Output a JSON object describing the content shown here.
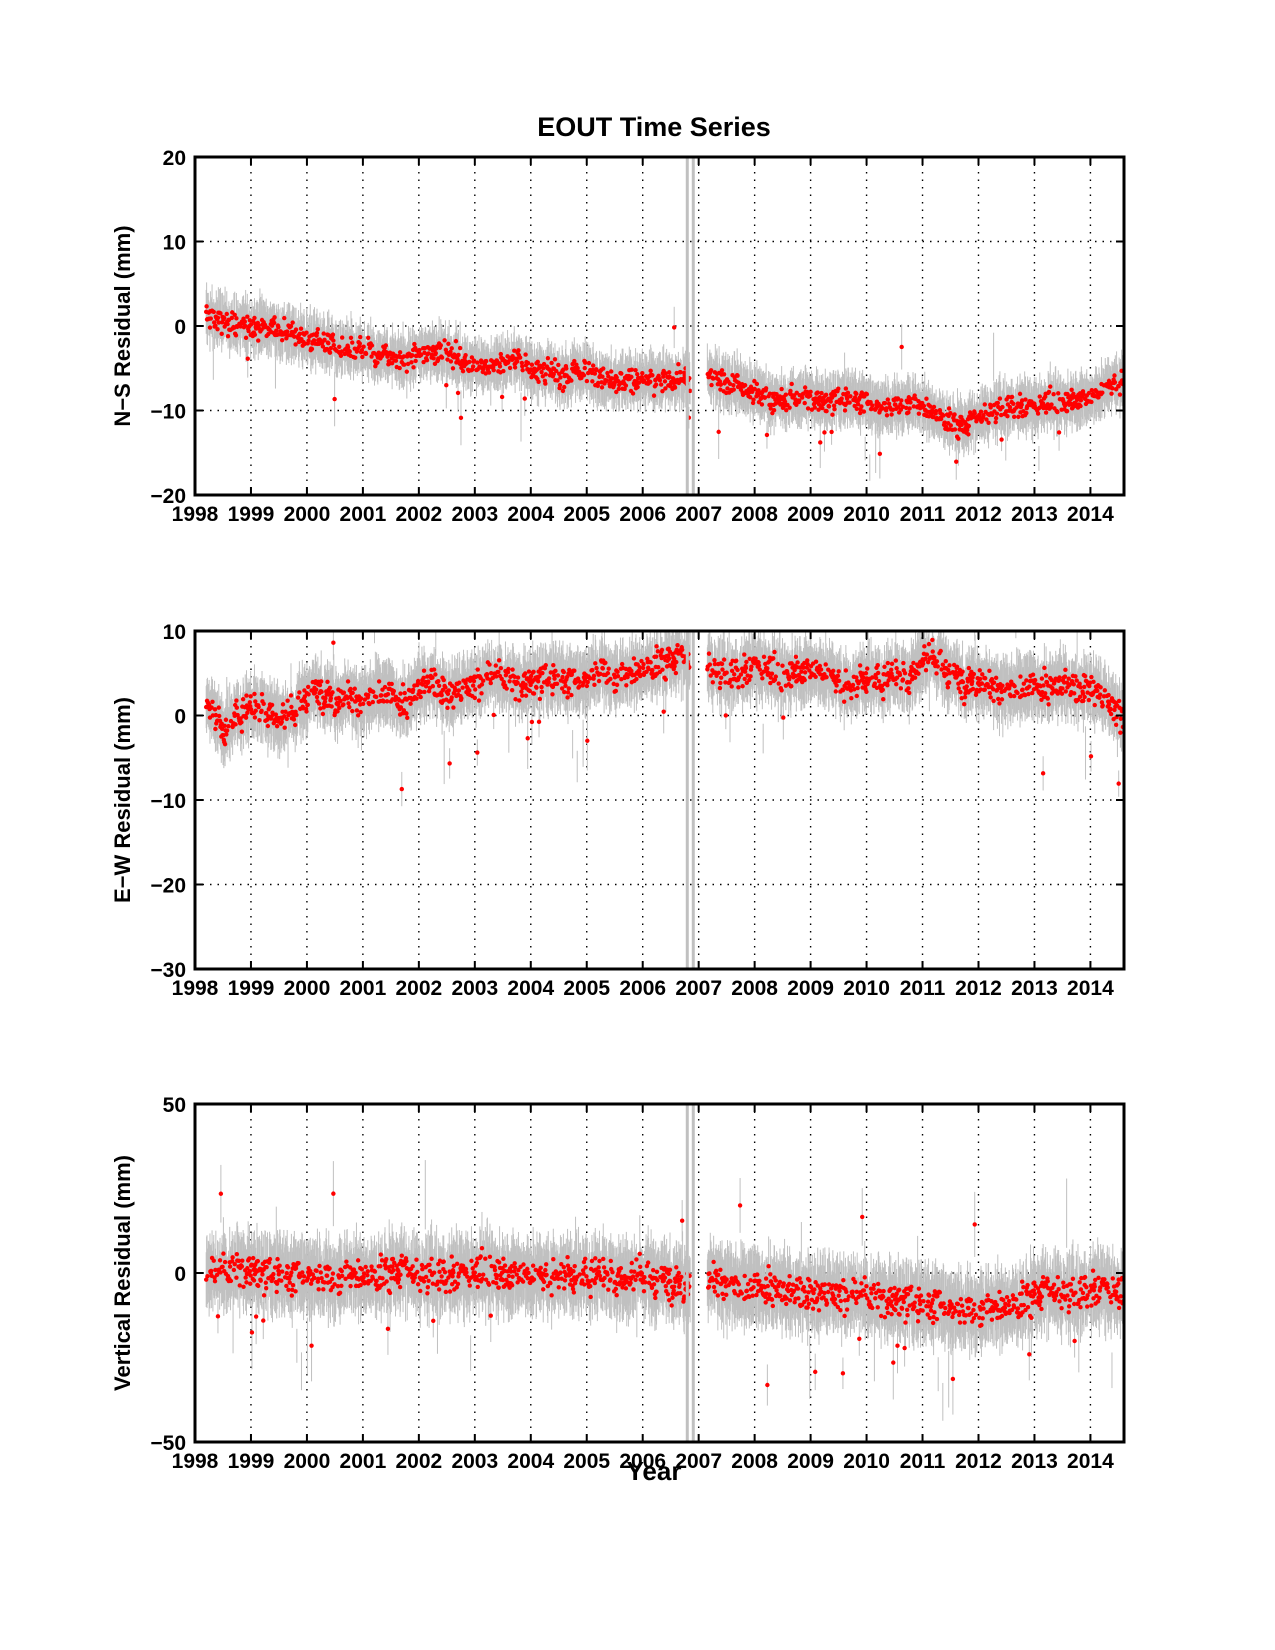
{
  "title": "EOUT Time Series",
  "xlabel": "Year",
  "colors": {
    "points": "#ff0000",
    "errorbars": "#c0c0c0",
    "gap_marker": "#c0c0c0",
    "grid": "#000000"
  },
  "chart_data": [
    {
      "type": "scatter",
      "title": "EOUT Time Series",
      "xlabel": "",
      "ylabel": "N−S Residual (mm)",
      "xlim": [
        1998,
        2014.6
      ],
      "ylim": [
        -20,
        20
      ],
      "xticks": [
        1998,
        1999,
        2000,
        2001,
        2002,
        2003,
        2004,
        2005,
        2006,
        2007,
        2008,
        2009,
        2010,
        2011,
        2012,
        2013,
        2014
      ],
      "xticklabels": [
        "1998",
        "1999",
        "2000",
        "2001",
        "2002",
        "2003",
        "2004",
        "2005",
        "2006",
        "2007",
        "2008",
        "2009",
        "2010",
        "2011",
        "2012",
        "2013",
        "2014"
      ],
      "yticks": [
        -20,
        -10,
        0,
        10,
        20
      ],
      "yticklabels": [
        "−20",
        "−10",
        "0",
        "10",
        "20"
      ],
      "grid": true,
      "gap_marker_x": 2006.85,
      "data_gap": [
        2006.85,
        2007.15
      ],
      "series": [
        {
          "x": [
            1998.25,
            1998.5,
            1998.75,
            1999.0,
            1999.25,
            1999.5,
            1999.75,
            2000.0,
            2000.25,
            2000.5,
            2000.75,
            2001.0,
            2001.25,
            2001.5,
            2001.75,
            2002.0,
            2002.25,
            2002.5,
            2002.75,
            2003.0,
            2003.25,
            2003.5,
            2003.75,
            2004.0,
            2004.25,
            2004.5,
            2004.75,
            2005.0,
            2005.25,
            2005.5,
            2005.75,
            2006.0,
            2006.25,
            2006.5,
            2006.75,
            2007.25,
            2007.5,
            2007.75,
            2008.0,
            2008.25,
            2008.5,
            2008.75,
            2009.0,
            2009.25,
            2009.5,
            2009.75,
            2010.0,
            2010.25,
            2010.5,
            2010.75,
            2011.0,
            2011.25,
            2011.5,
            2011.75,
            2012.0,
            2012.25,
            2012.5,
            2012.75,
            2013.0,
            2013.25,
            2013.5,
            2013.75,
            2014.0,
            2014.25,
            2014.5
          ],
          "y": [
            1,
            0.5,
            0,
            0,
            0,
            -0.5,
            -1,
            -1.5,
            -2,
            -2.5,
            -3,
            -3,
            -3.5,
            -3.5,
            -4,
            -3.5,
            -3,
            -3,
            -4,
            -4.5,
            -5,
            -4.5,
            -4,
            -5,
            -5.5,
            -6,
            -5.5,
            -5.5,
            -6,
            -6.5,
            -6.5,
            -6.5,
            -6.5,
            -6.5,
            -6.5,
            -6,
            -6.5,
            -7,
            -8,
            -8.5,
            -9,
            -8.5,
            -8.5,
            -9,
            -8.5,
            -8.5,
            -9,
            -9.5,
            -9.5,
            -9,
            -9.5,
            -10.5,
            -11.5,
            -12,
            -11,
            -10,
            -9.5,
            -9.5,
            -9.5,
            -9,
            -9,
            -8.5,
            -8.5,
            -7.5,
            -6.5
          ]
        }
      ]
    },
    {
      "type": "scatter",
      "title": "",
      "xlabel": "",
      "ylabel": "E−W Residual (mm)",
      "xlim": [
        1998,
        2014.6
      ],
      "ylim": [
        -30,
        10
      ],
      "xticks": [
        1998,
        1999,
        2000,
        2001,
        2002,
        2003,
        2004,
        2005,
        2006,
        2007,
        2008,
        2009,
        2010,
        2011,
        2012,
        2013,
        2014
      ],
      "xticklabels": [
        "1998",
        "1999",
        "2000",
        "2001",
        "2002",
        "2003",
        "2004",
        "2005",
        "2006",
        "2007",
        "2008",
        "2009",
        "2010",
        "2011",
        "2012",
        "2013",
        "2014"
      ],
      "yticks": [
        -30,
        -20,
        -10,
        0,
        10
      ],
      "yticklabels": [
        "−30",
        "−20",
        "−10",
        "0",
        "10"
      ],
      "grid": true,
      "gap_marker_x": 2006.85,
      "data_gap": [
        2006.85,
        2007.15
      ],
      "series": [
        {
          "x": [
            1998.25,
            1998.5,
            1998.75,
            1999.0,
            1999.25,
            1999.5,
            1999.75,
            2000.0,
            2000.25,
            2000.5,
            2000.75,
            2001.0,
            2001.25,
            2001.5,
            2001.75,
            2002.0,
            2002.25,
            2002.5,
            2002.75,
            2003.0,
            2003.25,
            2003.5,
            2003.75,
            2004.0,
            2004.25,
            2004.5,
            2004.75,
            2005.0,
            2005.25,
            2005.5,
            2005.75,
            2006.0,
            2006.25,
            2006.5,
            2006.75,
            2007.25,
            2007.5,
            2007.75,
            2008.0,
            2008.25,
            2008.5,
            2008.75,
            2009.0,
            2009.25,
            2009.5,
            2009.75,
            2010.0,
            2010.25,
            2010.5,
            2010.75,
            2011.0,
            2011.25,
            2011.5,
            2011.75,
            2012.0,
            2012.25,
            2012.5,
            2012.75,
            2013.0,
            2013.25,
            2013.5,
            2013.75,
            2014.0,
            2014.25,
            2014.5
          ],
          "y": [
            1.5,
            -2,
            0,
            1,
            1,
            -0.5,
            0,
            2.5,
            3,
            2,
            2.5,
            1.5,
            3,
            2.5,
            1,
            3.5,
            4,
            2.5,
            3,
            3.5,
            4.5,
            4.5,
            3.5,
            4,
            4.5,
            4.5,
            4,
            4.5,
            5.5,
            4.5,
            5,
            5.5,
            6,
            6.5,
            6.5,
            5.5,
            5,
            5,
            6,
            5.5,
            4.5,
            5.5,
            5.5,
            5,
            4,
            3.5,
            4.5,
            4,
            5,
            4.5,
            6.5,
            6.5,
            5,
            4,
            4.5,
            3.5,
            3,
            3.5,
            3.5,
            3,
            4,
            3,
            3.5,
            2,
            0
          ]
        }
      ]
    },
    {
      "type": "scatter",
      "title": "",
      "xlabel": "Year",
      "ylabel": "Vertical Residual (mm)",
      "xlim": [
        1998,
        2014.6
      ],
      "ylim": [
        -50,
        50
      ],
      "xticks": [
        1998,
        1999,
        2000,
        2001,
        2002,
        2003,
        2004,
        2005,
        2006,
        2007,
        2008,
        2009,
        2010,
        2011,
        2012,
        2013,
        2014
      ],
      "xticklabels": [
        "1998",
        "1999",
        "2000",
        "2001",
        "2002",
        "2003",
        "2004",
        "2005",
        "2006",
        "2007",
        "2008",
        "2009",
        "2010",
        "2011",
        "2012",
        "2013",
        "2014"
      ],
      "yticks": [
        -50,
        0,
        50
      ],
      "yticklabels": [
        "−50",
        "0",
        "50"
      ],
      "grid": true,
      "gap_marker_x": 2006.85,
      "data_gap": [
        2006.85,
        2007.15
      ],
      "series": [
        {
          "x": [
            1998.25,
            1998.5,
            1998.75,
            1999.0,
            1999.25,
            1999.5,
            1999.75,
            2000.0,
            2000.25,
            2000.5,
            2000.75,
            2001.0,
            2001.25,
            2001.5,
            2001.75,
            2002.0,
            2002.25,
            2002.5,
            2002.75,
            2003.0,
            2003.25,
            2003.5,
            2003.75,
            2004.0,
            2004.25,
            2004.5,
            2004.75,
            2005.0,
            2005.25,
            2005.5,
            2005.75,
            2006.0,
            2006.25,
            2006.5,
            2006.75,
            2007.25,
            2007.5,
            2007.75,
            2008.0,
            2008.25,
            2008.5,
            2008.75,
            2009.0,
            2009.25,
            2009.5,
            2009.75,
            2010.0,
            2010.25,
            2010.5,
            2010.75,
            2011.0,
            2011.25,
            2011.5,
            2011.75,
            2012.0,
            2012.25,
            2012.5,
            2012.75,
            2013.0,
            2013.25,
            2013.5,
            2013.75,
            2014.0,
            2014.25,
            2014.5
          ],
          "y": [
            -1,
            0,
            1,
            1,
            0,
            0,
            -1,
            0,
            -1,
            -2,
            0,
            -1,
            -1,
            0,
            0,
            -1,
            0,
            -1,
            0,
            0,
            1,
            0,
            0,
            -1,
            -1,
            0,
            -1,
            -1,
            0,
            -1,
            -2,
            -1,
            -2,
            -2,
            -3,
            -1,
            -3,
            -4,
            -4,
            -5,
            -5,
            -6,
            -6,
            -6,
            -7,
            -7,
            -7,
            -8,
            -8,
            -8,
            -9,
            -9,
            -10,
            -11,
            -11,
            -10,
            -10,
            -9,
            -7,
            -6,
            -6,
            -6,
            -5,
            -4,
            -6
          ]
        }
      ]
    }
  ]
}
